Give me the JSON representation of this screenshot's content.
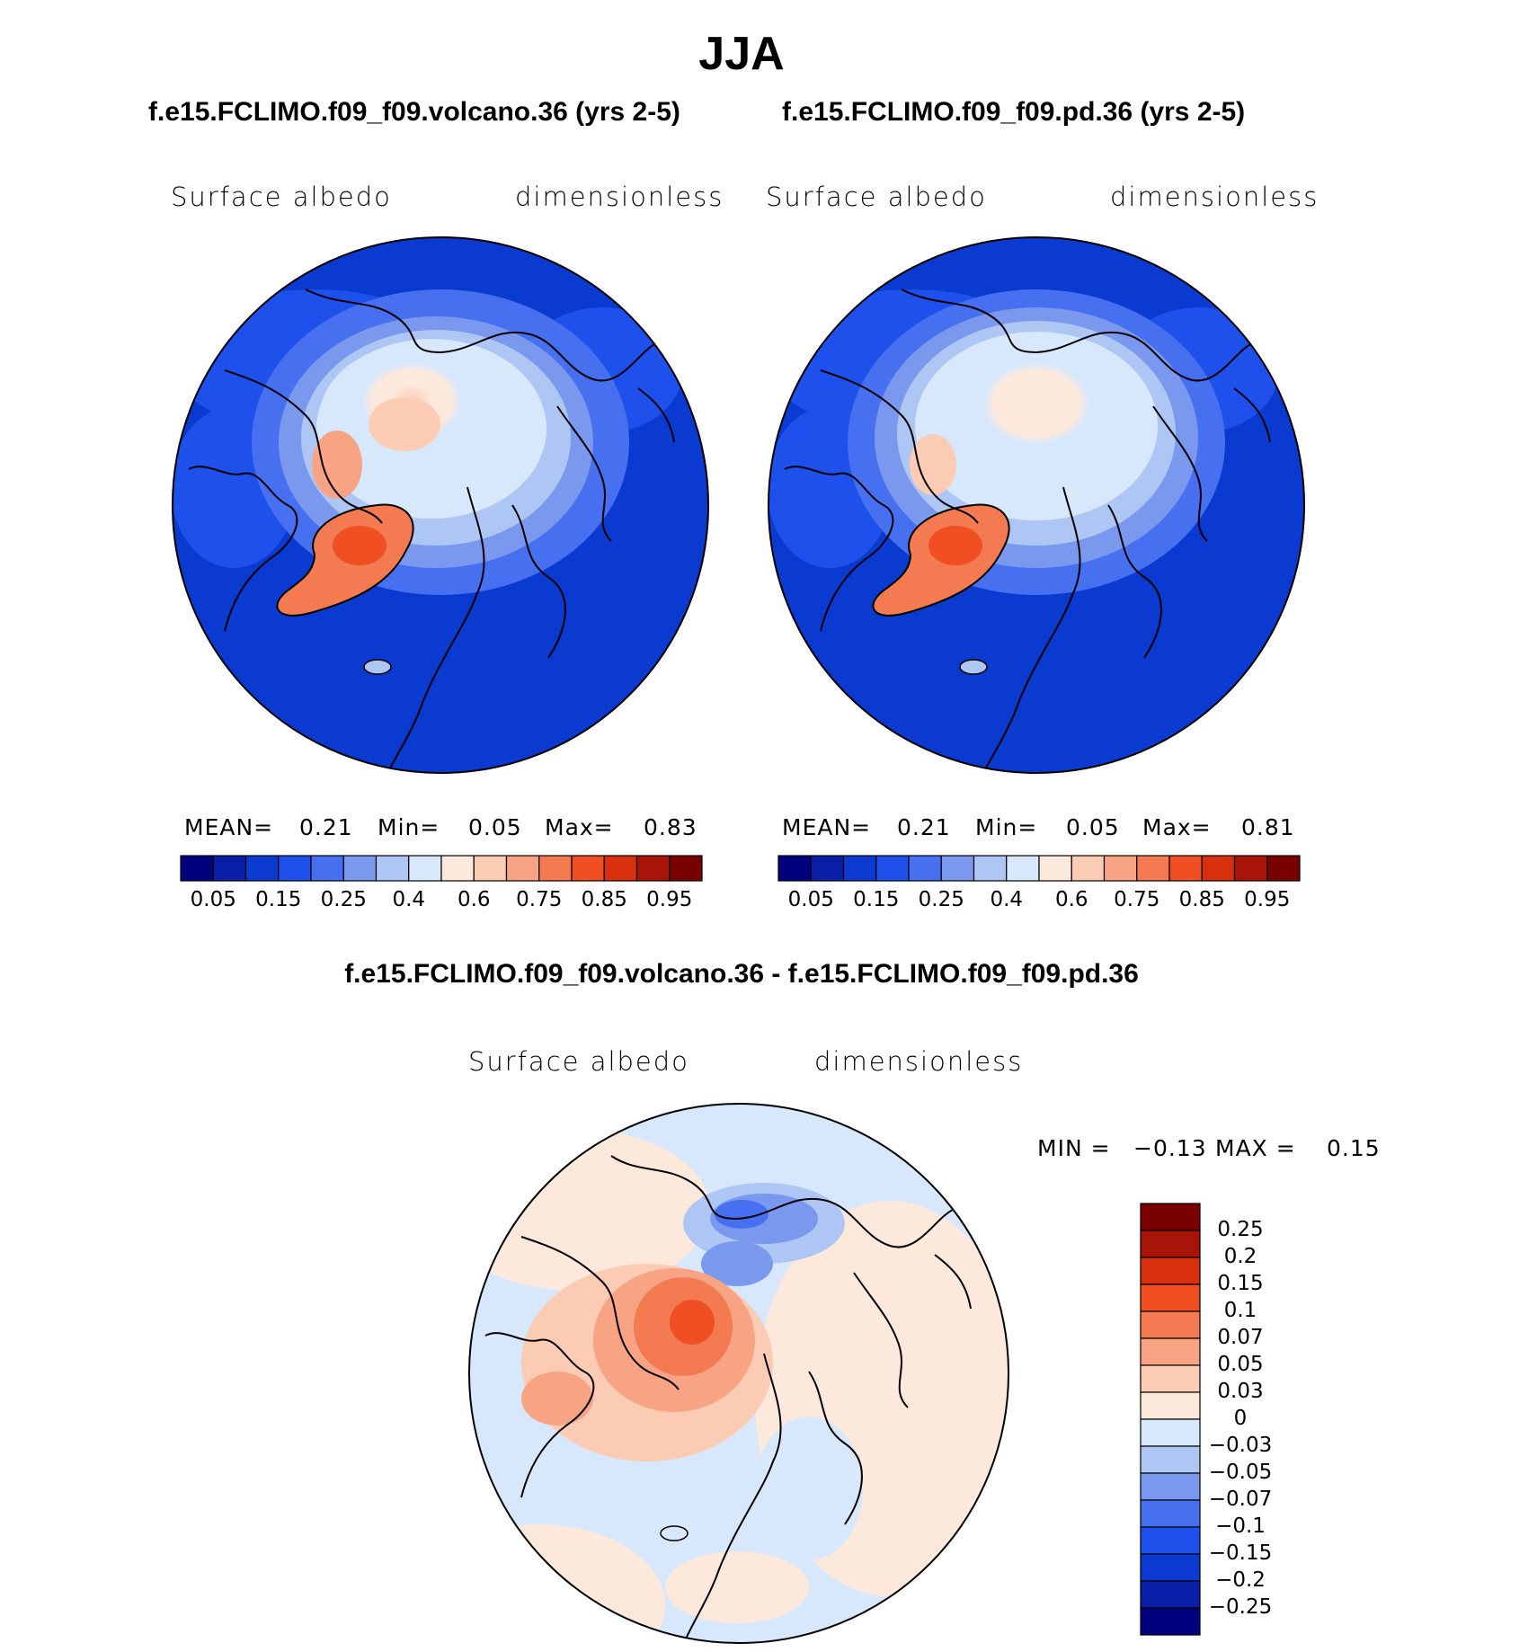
{
  "title": "JJA",
  "panels": [
    {
      "case_title": "f.e15.FCLIMO.f09_f09.volcano.36 (yrs 2-5)",
      "variable": "Surface albedo",
      "units": "dimensionless",
      "stats": {
        "mean_label": "MEAN=",
        "mean": "0.21",
        "min_label": "Min=",
        "min": "0.05",
        "max_label": "Max=",
        "max": "0.83"
      }
    },
    {
      "case_title": "f.e15.FCLIMO.f09_f09.pd.36 (yrs 2-5)",
      "variable": "Surface albedo",
      "units": "dimensionless",
      "stats": {
        "mean_label": "MEAN=",
        "mean": "0.21",
        "min_label": "Min=",
        "min": "0.05",
        "max_label": "Max=",
        "max": "0.81"
      }
    }
  ],
  "colorbar": {
    "colors": [
      "#00007f",
      "#0a1fa8",
      "#0a3ad0",
      "#1e50ec",
      "#4670f0",
      "#7a98ee",
      "#aec6f4",
      "#d8e8fc",
      "#fde9dc",
      "#fbcbb4",
      "#f7a384",
      "#f47a52",
      "#f04f24",
      "#d8300c",
      "#a81408",
      "#7a0000"
    ],
    "tick_labels": [
      "0.05",
      "0.15",
      "0.25",
      "0.4",
      "0.6",
      "0.75",
      "0.85",
      "0.95"
    ]
  },
  "difference": {
    "title": "f.e15.FCLIMO.f09_f09.volcano.36 - f.e15.FCLIMO.f09_f09.pd.36",
    "variable": "Surface albedo",
    "units": "dimensionless",
    "min_label": "MIN =",
    "min": "−0.13",
    "max_label": "MAX =",
    "max": "0.15",
    "colorbar_colors": [
      "#7a0000",
      "#a81408",
      "#d8300c",
      "#f04f24",
      "#f47a52",
      "#f7a384",
      "#fbcbb4",
      "#fde9dc",
      "#d8e8fc",
      "#aec6f4",
      "#7a98ee",
      "#4670f0",
      "#1e50ec",
      "#0a3ad0",
      "#0a1fa8",
      "#00007f"
    ],
    "colorbar_labels": [
      "0.25",
      "0.2",
      "0.15",
      "0.1",
      "0.07",
      "0.05",
      "0.03",
      "0",
      "−0.03",
      "−0.05",
      "−0.07",
      "−0.1",
      "−0.15",
      "−0.2",
      "−0.25"
    ]
  }
}
